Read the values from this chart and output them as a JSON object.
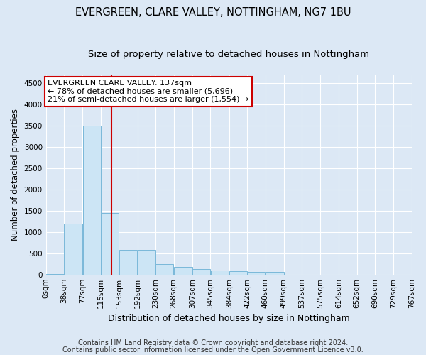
{
  "title": "EVERGREEN, CLARE VALLEY, NOTTINGHAM, NG7 1BU",
  "subtitle": "Size of property relative to detached houses in Nottingham",
  "xlabel": "Distribution of detached houses by size in Nottingham",
  "ylabel": "Number of detached properties",
  "footnote1": "Contains HM Land Registry data © Crown copyright and database right 2024.",
  "footnote2": "Contains public sector information licensed under the Open Government Licence v3.0.",
  "bar_edges": [
    0,
    38,
    77,
    115,
    153,
    192,
    230,
    268,
    307,
    345,
    384,
    422,
    460,
    499,
    537,
    575,
    614,
    652,
    690,
    729,
    767
  ],
  "bar_values": [
    10,
    1200,
    3500,
    1450,
    580,
    580,
    240,
    170,
    130,
    100,
    70,
    55,
    55,
    0,
    0,
    0,
    0,
    0,
    0,
    0
  ],
  "bar_color": "#cce5f5",
  "bar_edgecolor": "#7ab8d9",
  "property_sqm": 137,
  "property_line_color": "#cc0000",
  "annotation_text": "EVERGREEN CLARE VALLEY: 137sqm\n← 78% of detached houses are smaller (5,696)\n21% of semi-detached houses are larger (1,554) →",
  "annotation_box_color": "#cc0000",
  "ylim": [
    0,
    4700
  ],
  "yticks": [
    0,
    500,
    1000,
    1500,
    2000,
    2500,
    3000,
    3500,
    4000,
    4500
  ],
  "bg_color": "#dce8f5",
  "plot_bg_color": "#dce8f5",
  "grid_color": "#ffffff",
  "title_fontsize": 10.5,
  "subtitle_fontsize": 9.5,
  "xlabel_fontsize": 9,
  "ylabel_fontsize": 8.5,
  "tick_fontsize": 7.5,
  "annotation_fontsize": 8,
  "footnote_fontsize": 7
}
